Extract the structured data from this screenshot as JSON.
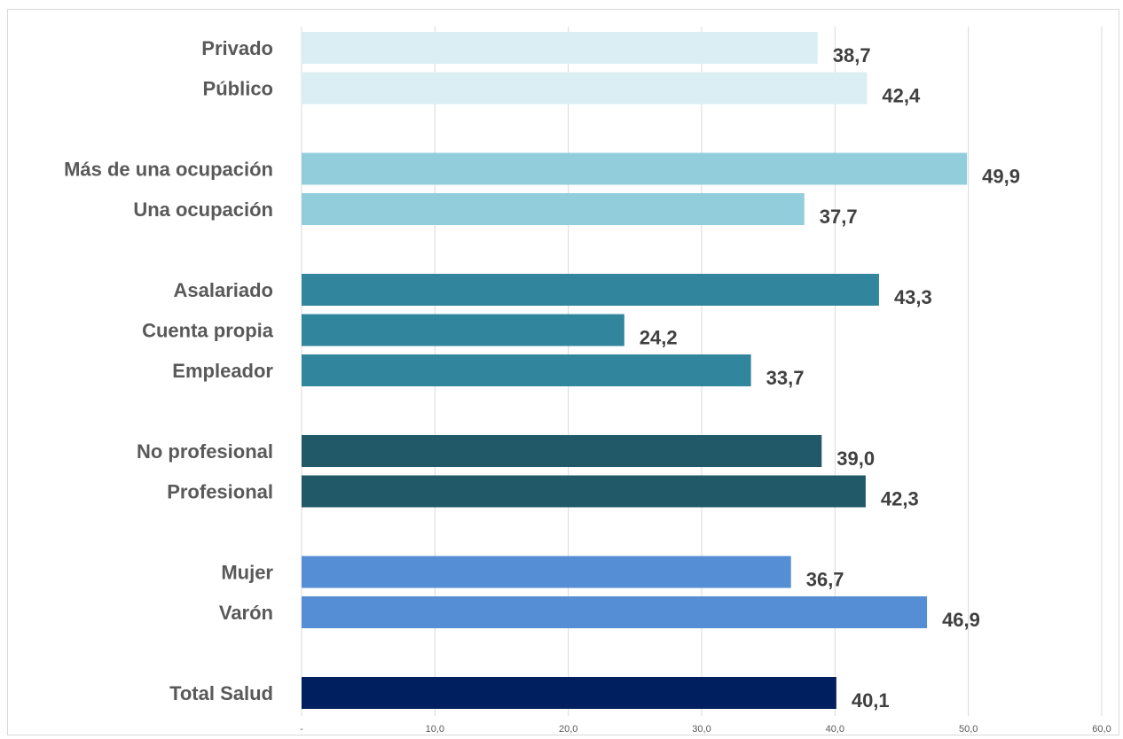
{
  "chart_data": {
    "type": "bar",
    "orientation": "horizontal",
    "title": "",
    "xlabel": "",
    "ylabel": "",
    "xlim": [
      0,
      60
    ],
    "x_ticks": [
      "-",
      "10,0",
      "20,0",
      "30,0",
      "40,0",
      "50,0",
      "60,0"
    ],
    "grid": true,
    "legend": "none",
    "groups": [
      {
        "color": "#daeef3",
        "items": [
          {
            "label": "Privado",
            "value": 38.7,
            "value_label": "38,7"
          },
          {
            "label": "Público",
            "value": 42.4,
            "value_label": "42,4"
          }
        ]
      },
      {
        "color": "#92cddc",
        "items": [
          {
            "label": "Más de una ocupación",
            "value": 49.9,
            "value_label": "49,9"
          },
          {
            "label": "Una ocupación",
            "value": 37.7,
            "value_label": "37,7"
          }
        ]
      },
      {
        "color": "#31859c",
        "items": [
          {
            "label": "Asalariado",
            "value": 43.3,
            "value_label": "43,3"
          },
          {
            "label": "Cuenta propia",
            "value": 24.2,
            "value_label": "24,2"
          },
          {
            "label": "Empleador",
            "value": 33.7,
            "value_label": "33,7"
          }
        ]
      },
      {
        "color": "#215968",
        "items": [
          {
            "label": "No profesional",
            "value": 39.0,
            "value_label": "39,0"
          },
          {
            "label": "Profesional",
            "value": 42.3,
            "value_label": "42,3"
          }
        ]
      },
      {
        "color": "#558ed5",
        "items": [
          {
            "label": "Mujer",
            "value": 36.7,
            "value_label": "36,7"
          },
          {
            "label": "Varón",
            "value": 46.9,
            "value_label": "46,9"
          }
        ]
      },
      {
        "color": "#001f5f",
        "items": [
          {
            "label": "Total Salud",
            "value": 40.1,
            "value_label": "40,1"
          }
        ]
      }
    ]
  }
}
